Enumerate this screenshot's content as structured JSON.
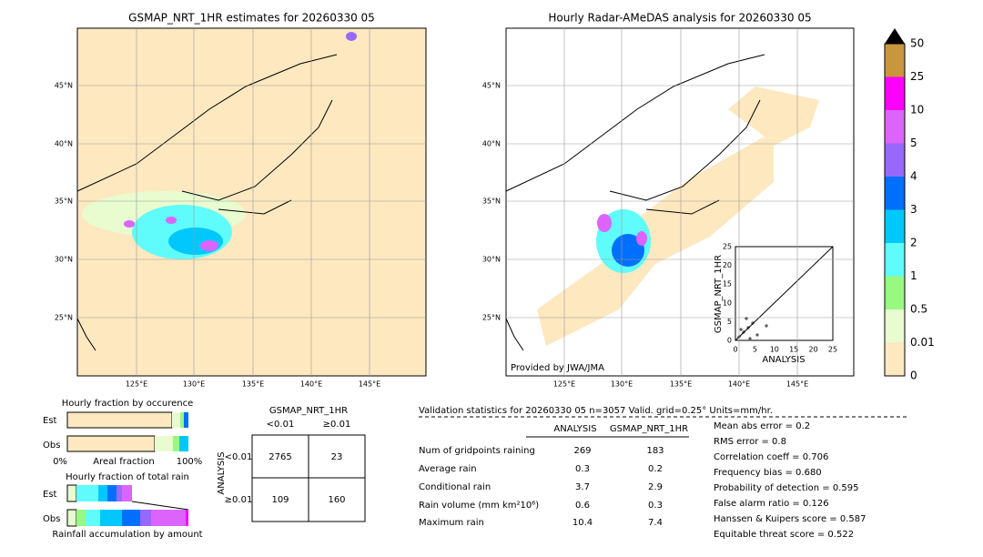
{
  "left_map": {
    "title": "GSMAP_NRT_1HR estimates for 20260330 05",
    "lat_labels": [
      "45°N",
      "40°N",
      "35°N",
      "30°N",
      "25°N"
    ],
    "lon_labels": [
      "125°E",
      "130°E",
      "135°E",
      "140°E",
      "145°E"
    ]
  },
  "right_map": {
    "title": "Hourly Radar-AMeDAS analysis for 20260330 05",
    "lat_labels": [
      "45°N",
      "40°N",
      "35°N",
      "30°N",
      "25°N"
    ],
    "lon_labels": [
      "125°E",
      "130°E",
      "135°E",
      "140°E",
      "145°E"
    ],
    "credit": "Provided by JWA/JMA"
  },
  "scatter": {
    "x_label": "ANALYSIS",
    "y_label": "GSMAP_NRT_1HR",
    "ticks": [
      "0",
      "5",
      "10",
      "15",
      "20",
      "25"
    ]
  },
  "colorbar": {
    "labels": [
      "0",
      "0.01",
      "0.5",
      "1",
      "2",
      "3",
      "4",
      "5",
      "10",
      "25",
      "50"
    ],
    "colors": [
      "#fde8c0",
      "#e8fcd0",
      "#98f880",
      "#60fcfc",
      "#00c8fc",
      "#0070fc",
      "#9868fc",
      "#dc64fc",
      "#fc00fc",
      "#c8963c"
    ]
  },
  "fraction_occurrence": {
    "title": "Hourly fraction by occurence",
    "rows": [
      "Est",
      "Obs"
    ],
    "axis_left": "0%",
    "axis_mid": "Areal fraction",
    "axis_right": "100%"
  },
  "fraction_amount": {
    "title": "Hourly fraction of total rain",
    "rows": [
      "Est",
      "Obs"
    ],
    "footer": "Rainfall accumulation by amount"
  },
  "contingency": {
    "title": "GSMAP_NRT_1HR",
    "col_headers": [
      "<0.01",
      "≥0.01"
    ],
    "row_label": "ANALYSIS",
    "row_headers": [
      "<0.01",
      "≥0.01"
    ],
    "cells": [
      [
        "2765",
        "23"
      ],
      [
        "109",
        "160"
      ]
    ]
  },
  "validation": {
    "title": "Validation statistics for 20260330 05  n=3057 Valid. grid=0.25° Units=mm/hr.",
    "columns": [
      "ANALYSIS",
      "GSMAP_NRT_1HR"
    ],
    "rows": [
      {
        "label": "Num of gridpoints raining",
        "values": [
          "269",
          "183"
        ]
      },
      {
        "label": "Average rain",
        "values": [
          "0.3",
          "0.2"
        ]
      },
      {
        "label": "Conditional rain",
        "values": [
          "3.7",
          "2.9"
        ]
      },
      {
        "label": "Rain volume (mm km²10⁶)",
        "values": [
          "0.6",
          "0.3"
        ]
      },
      {
        "label": "Maximum rain",
        "values": [
          "10.4",
          "7.4"
        ]
      }
    ],
    "scores": [
      "Mean abs error =    0.2",
      "RMS error =    0.8",
      "Correlation coeff =  0.706",
      "Frequency bias =  0.680",
      "Probability of detection =  0.595",
      "False alarm ratio =  0.126",
      "Hanssen & Kuipers score =  0.587",
      "Equitable threat score =  0.522"
    ]
  }
}
